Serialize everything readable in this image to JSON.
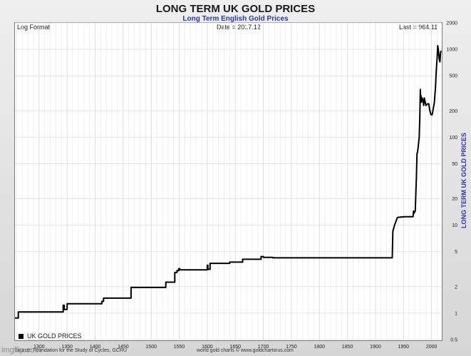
{
  "page": {
    "title": "LONG TERM UK GOLD PRICES",
    "subtitle": "Long Term English Gold Prices",
    "header_left": "Log Format",
    "header_center": "Date = 2017.12",
    "header_right": "Last = 964.11",
    "side_label": "LONG TERM UK GOLD PRICES",
    "legend_label": "UK GOLD PRICES",
    "footer_left": "Source: Foundation for the Study of Cycles, GCRU",
    "footer_center": "world gold charts © www.goldchartsrus.com",
    "watermark": "imgflip.com"
  },
  "colors": {
    "series": "#000000",
    "subtitle": "#2a37b8",
    "grid": "#e6e6e6"
  },
  "chart_data": {
    "type": "line",
    "title": "LONG TERM UK GOLD PRICES",
    "subtitle": "Long Term English Gold Prices",
    "ylabel": "LONG TERM UK GOLD PRICES",
    "yscale": "log",
    "ylim": [
      0.5,
      2000
    ],
    "xlim": [
      1257,
      2017
    ],
    "grid": true,
    "legend_position": "bottom-left",
    "y_ticks": [
      0.5,
      1,
      2,
      5,
      10,
      20,
      50,
      100,
      200,
      500,
      1000,
      2000
    ],
    "y_tick_labels": [
      "0.5",
      "1",
      "2",
      "5",
      "10",
      "20",
      "50",
      "100",
      "200",
      "500",
      "1000",
      "2000"
    ],
    "x_ticks": [
      1300,
      1350,
      1400,
      1450,
      1500,
      1550,
      1600,
      1650,
      1700,
      1750,
      1800,
      1850,
      1900,
      1950,
      2000
    ],
    "x_tick_labels": [
      "1300",
      "1350",
      "1400",
      "1450",
      "1500",
      "1550",
      "1600",
      "1650",
      "1700",
      "1750",
      "1800",
      "1850",
      "1900",
      "1950",
      "2000"
    ],
    "series": [
      {
        "name": "UK GOLD PRICES",
        "x": [
          1257,
          1263,
          1263,
          1343,
          1343,
          1345,
          1345,
          1350,
          1350,
          1412,
          1412,
          1415,
          1415,
          1464,
          1464,
          1526,
          1526,
          1542,
          1542,
          1546,
          1546,
          1549,
          1549,
          1551,
          1551,
          1600,
          1600,
          1601,
          1601,
          1605,
          1605,
          1640,
          1640,
          1663,
          1663,
          1696,
          1696,
          1700,
          1700,
          1717,
          1717,
          1930,
          1931,
          1931,
          1934,
          1934,
          1939,
          1939,
          1941,
          1941,
          1945,
          1945,
          1950,
          1950,
          1952,
          1953,
          1960,
          1965,
          1967,
          1968,
          1968,
          1971,
          1972,
          1973,
          1974,
          1975,
          1976,
          1978,
          1979,
          1980,
          1980,
          1981,
          1982,
          1983,
          1985,
          1986,
          1987,
          1990,
          1993,
          1995,
          1997,
          1999,
          2001,
          2003,
          2005,
          2006,
          2007,
          2008,
          2009,
          2010,
          2011,
          2012,
          2013,
          2014,
          2015,
          2016,
          2017
        ],
        "y": [
          0.88,
          0.88,
          1.03,
          1.03,
          1.23,
          1.23,
          1.1,
          1.1,
          1.28,
          1.28,
          1.36,
          1.36,
          1.48,
          1.48,
          1.96,
          1.96,
          2.25,
          2.25,
          2.9,
          2.9,
          3.05,
          3.05,
          3.2,
          3.2,
          3.1,
          3.1,
          3.5,
          3.5,
          3.15,
          3.15,
          3.68,
          3.68,
          3.8,
          3.8,
          4.1,
          4.1,
          4.4,
          4.4,
          4.3,
          4.3,
          4.25,
          4.25,
          8.5,
          8.5,
          10.0,
          10.0,
          12.2,
          12.2,
          12.3,
          12.3,
          12.3,
          12.4,
          12.4,
          12.5,
          12.5,
          12.5,
          12.5,
          12.5,
          12.5,
          14.5,
          13.5,
          14.5,
          23,
          35,
          65,
          68,
          75,
          100,
          160,
          350,
          280,
          300,
          250,
          280,
          260,
          230,
          280,
          230,
          240,
          240,
          200,
          180,
          180,
          210,
          250,
          300,
          360,
          500,
          650,
          800,
          1100,
          1000,
          850,
          760,
          720,
          900,
          964
        ]
      }
    ]
  }
}
